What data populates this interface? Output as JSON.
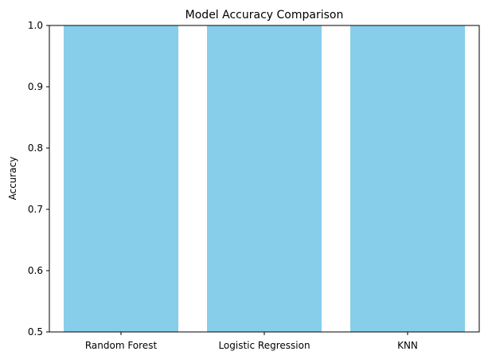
{
  "chart_data": {
    "type": "bar",
    "title": "Model Accuracy Comparison",
    "xlabel": "",
    "ylabel": "Accuracy",
    "categories": [
      "Random Forest",
      "Logistic Regression",
      "KNN"
    ],
    "values": [
      1.0,
      1.0,
      1.0
    ],
    "ylim": [
      0.5,
      1.0
    ],
    "yticks": [
      "0.5",
      "0.6",
      "0.7",
      "0.8",
      "0.9",
      "1.0"
    ],
    "grid": false,
    "bar_color": "#87CEEB"
  }
}
